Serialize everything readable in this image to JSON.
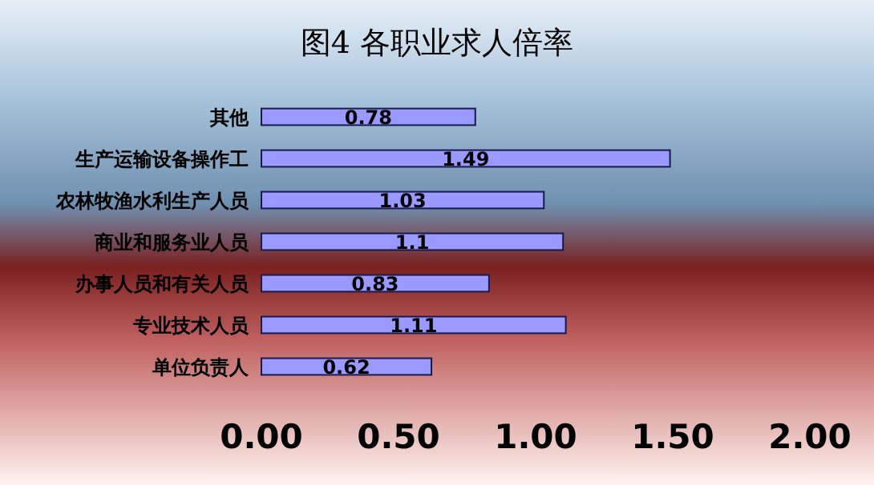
{
  "chart_data": {
    "type": "bar",
    "orientation": "horizontal",
    "title": "图4  各职业求人倍率",
    "categories": [
      "其他",
      "生产运输设备操作工",
      "农林牧渔水利生产人员",
      "商业和服务业人员",
      "办事人员和有关人员",
      "专业技术人员",
      "单位负责人"
    ],
    "values": [
      0.78,
      1.49,
      1.03,
      1.1,
      0.83,
      1.11,
      0.62
    ],
    "color": "#9999ff",
    "xlim": [
      0,
      2
    ],
    "xticks": [
      {
        "value": 0,
        "label": "0.00"
      },
      {
        "value": 0.5,
        "label": "0.50"
      },
      {
        "value": 1,
        "label": "1.00"
      },
      {
        "value": 1.5,
        "label": "1.50"
      },
      {
        "value": 2,
        "label": "2.00"
      }
    ],
    "data_labels": true
  }
}
